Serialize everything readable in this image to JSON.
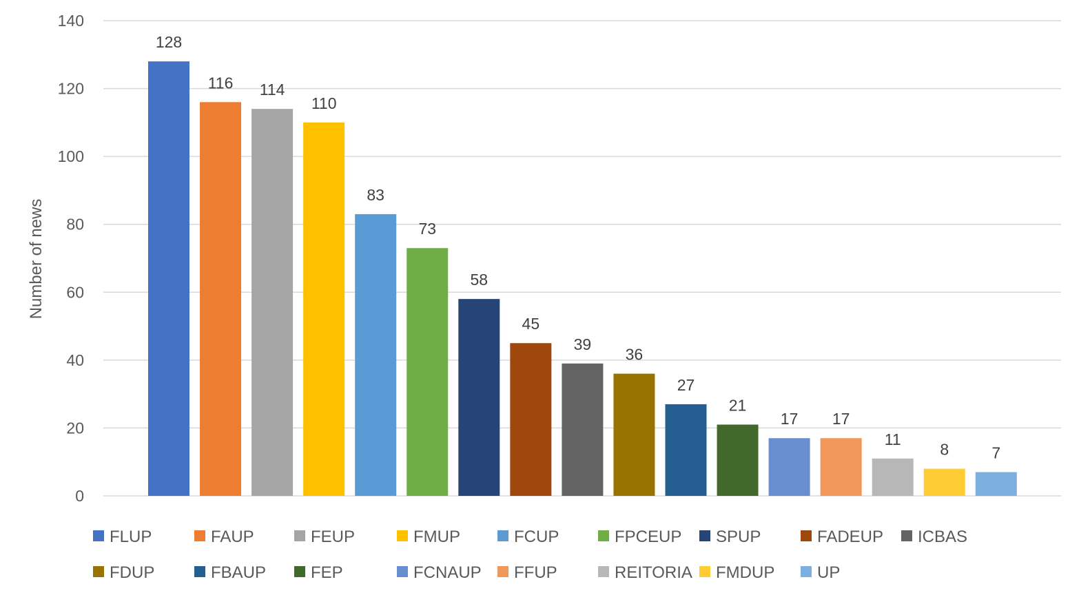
{
  "chart_data": {
    "type": "bar",
    "title": "",
    "xlabel": "",
    "ylabel": "Number of news",
    "ylim": [
      0,
      140
    ],
    "yticks": [
      0,
      20,
      40,
      60,
      80,
      100,
      120,
      140
    ],
    "grid": true,
    "legend_position": "bottom",
    "categories": [
      "FLUP",
      "FAUP",
      "FEUP",
      "FMUP",
      "FCUP",
      "FPCEUP",
      "SPUP",
      "FADEUP",
      "ICBAS",
      "FDUP",
      "FBAUP",
      "FEP",
      "FCNAUP",
      "FFUP",
      "REITORIA",
      "FMDUP",
      "UP"
    ],
    "values": [
      128,
      116,
      114,
      110,
      83,
      73,
      58,
      45,
      39,
      36,
      27,
      21,
      17,
      17,
      11,
      8,
      7
    ],
    "colors": [
      "#4472c4",
      "#ed7d31",
      "#a5a5a5",
      "#ffc000",
      "#5b9bd5",
      "#70ad47",
      "#264478",
      "#9e480e",
      "#636363",
      "#997300",
      "#255e91",
      "#43682b",
      "#698ed0",
      "#f1975a",
      "#b7b7b7",
      "#ffcd33",
      "#7cafdd"
    ]
  }
}
